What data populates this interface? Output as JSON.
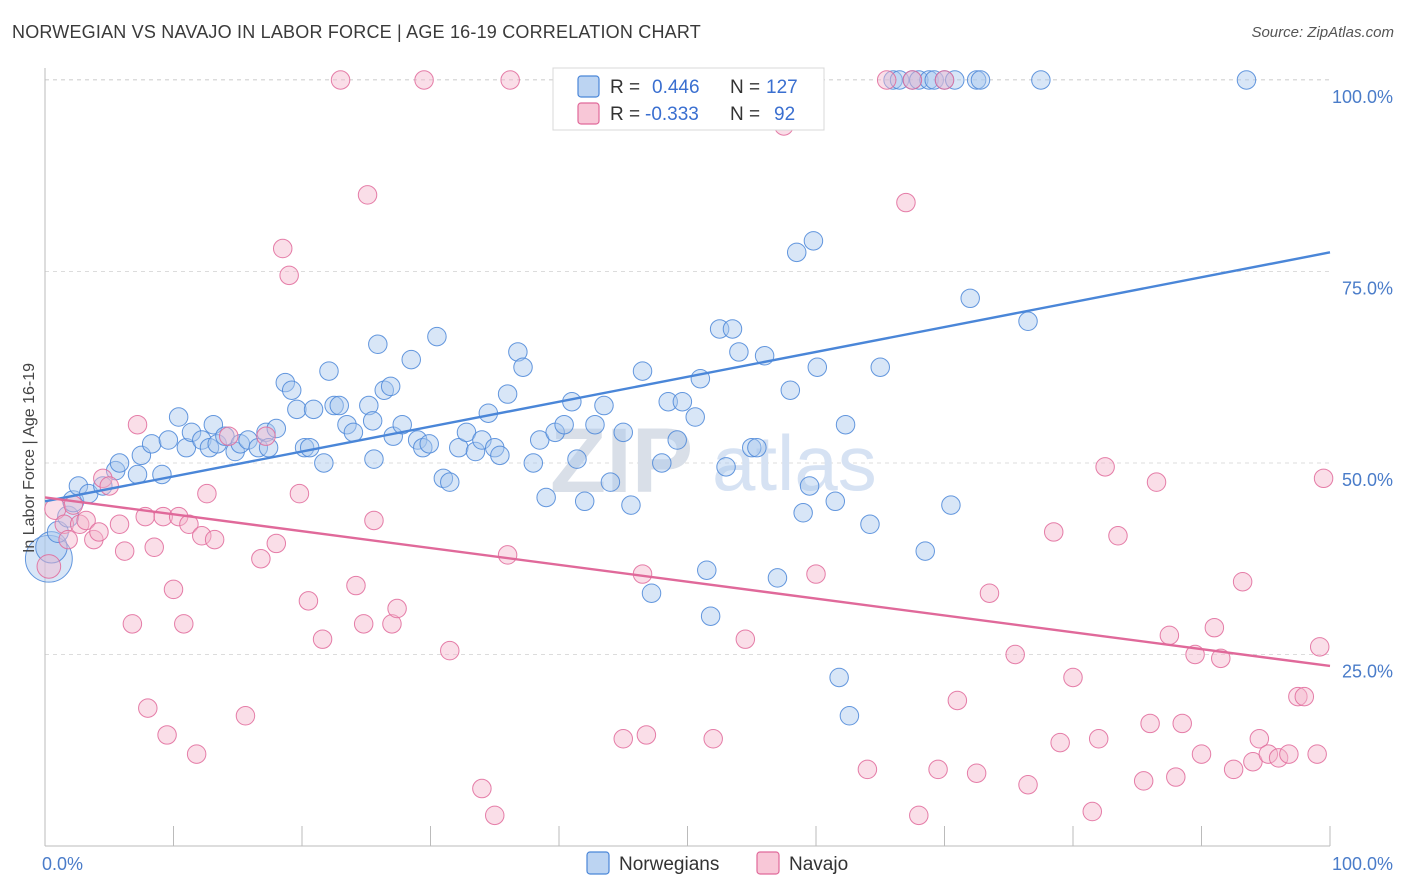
{
  "title": "NORWEGIAN VS NAVAJO IN LABOR FORCE | AGE 16-19 CORRELATION CHART",
  "source": "Source: ZipAtlas.com",
  "watermark": {
    "zip": "ZIP",
    "atlas": "atlas"
  },
  "chart_data": {
    "type": "scatter",
    "ylabel": "In Labor Force | Age 16-19",
    "xlim": [
      0,
      100
    ],
    "ylim": [
      0,
      100
    ],
    "x_tick_labels": [
      "0.0%",
      "100.0%"
    ],
    "y_ticks": [
      25,
      50,
      75,
      100
    ],
    "y_tick_labels": [
      "25.0%",
      "50.0%",
      "75.0%",
      "100.0%"
    ],
    "grid": true,
    "legend": {
      "placement": "top-center",
      "entries": [
        {
          "series": "Norwegians",
          "r_label": "R =",
          "r_value": "0.446",
          "n_label": "N =",
          "n_value": "127"
        },
        {
          "series": "Navajo",
          "r_label": "R =",
          "r_value": "-0.333",
          "n_label": "N =",
          "n_value": "92"
        }
      ]
    },
    "series": [
      {
        "name": "Norwegians",
        "color": "#4a86d8",
        "fill": "#a9c8ee",
        "trend": {
          "x": [
            0,
            100
          ],
          "y": [
            45.0,
            77.5
          ]
        },
        "points": [
          [
            0.3,
            37.5,
            34
          ],
          [
            0.5,
            39,
            22
          ],
          [
            1.0,
            41,
            14
          ],
          [
            1.8,
            43,
            14
          ],
          [
            2.2,
            45,
            14
          ],
          [
            2.6,
            47,
            12
          ],
          [
            3.4,
            46,
            12
          ],
          [
            4.5,
            47,
            12
          ],
          [
            5.5,
            49,
            12
          ],
          [
            5.8,
            50,
            12
          ],
          [
            7.2,
            48.5,
            12
          ],
          [
            7.5,
            51,
            12
          ],
          [
            8.3,
            52.5,
            12
          ],
          [
            9.1,
            48.5,
            12
          ],
          [
            9.6,
            53,
            12
          ],
          [
            10.4,
            56,
            12
          ],
          [
            11.0,
            52,
            12
          ],
          [
            11.4,
            54,
            12
          ],
          [
            12.2,
            53,
            12
          ],
          [
            12.8,
            52,
            12
          ],
          [
            13.1,
            55,
            12
          ],
          [
            13.4,
            52.5,
            12
          ],
          [
            14.0,
            53.5,
            12
          ],
          [
            14.8,
            51.5,
            12
          ],
          [
            15.2,
            52.5,
            12
          ],
          [
            15.8,
            53,
            12
          ],
          [
            16.6,
            52,
            12
          ],
          [
            17.2,
            54,
            12
          ],
          [
            17.4,
            52,
            12
          ],
          [
            18.0,
            54.5,
            12
          ],
          [
            18.7,
            60.5,
            12
          ],
          [
            19.2,
            59.5,
            12
          ],
          [
            19.6,
            57,
            12
          ],
          [
            20.2,
            52,
            12
          ],
          [
            20.6,
            52,
            12
          ],
          [
            20.9,
            57,
            12
          ],
          [
            21.7,
            50,
            12
          ],
          [
            22.1,
            62,
            12
          ],
          [
            22.5,
            57.5,
            12
          ],
          [
            22.9,
            57.5,
            12
          ],
          [
            23.5,
            55,
            12
          ],
          [
            24.0,
            54,
            12
          ],
          [
            25.2,
            57.5,
            12
          ],
          [
            25.5,
            55.5,
            12
          ],
          [
            25.6,
            50.5,
            12
          ],
          [
            25.9,
            65.5,
            12
          ],
          [
            26.4,
            59.5,
            12
          ],
          [
            26.9,
            60,
            12
          ],
          [
            27.1,
            53.5,
            12
          ],
          [
            27.8,
            55,
            12
          ],
          [
            28.5,
            63.5,
            12
          ],
          [
            29.0,
            53,
            12
          ],
          [
            29.4,
            52,
            12
          ],
          [
            29.9,
            52.5,
            12
          ],
          [
            30.5,
            66.5,
            12
          ],
          [
            31.0,
            48,
            12
          ],
          [
            31.5,
            47.5,
            12
          ],
          [
            32.2,
            52,
            12
          ],
          [
            32.8,
            54,
            12
          ],
          [
            33.5,
            51.5,
            12
          ],
          [
            34.0,
            53,
            12
          ],
          [
            34.5,
            56.5,
            12
          ],
          [
            35.0,
            52,
            12
          ],
          [
            35.4,
            51,
            12
          ],
          [
            36.0,
            59,
            12
          ],
          [
            36.8,
            64.5,
            12
          ],
          [
            37.2,
            62.5,
            12
          ],
          [
            38.0,
            50,
            12
          ],
          [
            38.5,
            53,
            12
          ],
          [
            39.0,
            45.5,
            12
          ],
          [
            39.7,
            54,
            12
          ],
          [
            40.4,
            55,
            12
          ],
          [
            41.0,
            58,
            12
          ],
          [
            41.4,
            50.5,
            12
          ],
          [
            42.0,
            45,
            12
          ],
          [
            42.8,
            55,
            12
          ],
          [
            43.5,
            57.5,
            12
          ],
          [
            44.0,
            47.5,
            12
          ],
          [
            45.0,
            54,
            12
          ],
          [
            45.6,
            44.5,
            12
          ],
          [
            46.5,
            62,
            12
          ],
          [
            47.2,
            33,
            12
          ],
          [
            48.0,
            50,
            12
          ],
          [
            48.5,
            58,
            12
          ],
          [
            49.2,
            53,
            12
          ],
          [
            49.6,
            58,
            12
          ],
          [
            50.6,
            56,
            12
          ],
          [
            51.0,
            61,
            12
          ],
          [
            51.5,
            36,
            12
          ],
          [
            51.8,
            30,
            12
          ],
          [
            52.5,
            67.5,
            12
          ],
          [
            53.0,
            49.5,
            12
          ],
          [
            53.5,
            67.5,
            12
          ],
          [
            54.0,
            64.5,
            12
          ],
          [
            55.0,
            52,
            12
          ],
          [
            55.4,
            52,
            12
          ],
          [
            56.0,
            64,
            12
          ],
          [
            57.0,
            35,
            12
          ],
          [
            58.0,
            59.5,
            12
          ],
          [
            58.5,
            77.5,
            12
          ],
          [
            59.0,
            43.5,
            12
          ],
          [
            59.5,
            47,
            12
          ],
          [
            59.8,
            79,
            12
          ],
          [
            60.1,
            62.5,
            12
          ],
          [
            61.5,
            45,
            12
          ],
          [
            61.8,
            22,
            12
          ],
          [
            62.3,
            55,
            12
          ],
          [
            62.6,
            17,
            12
          ],
          [
            64.2,
            42,
            12
          ],
          [
            65.0,
            62.5,
            12
          ],
          [
            66.0,
            100,
            12
          ],
          [
            66.5,
            100,
            12
          ],
          [
            67.5,
            100,
            12
          ],
          [
            68.0,
            100,
            12
          ],
          [
            68.5,
            38.5,
            12
          ],
          [
            68.8,
            100,
            12
          ],
          [
            69.2,
            100,
            12
          ],
          [
            70.0,
            100,
            12
          ],
          [
            70.5,
            44.5,
            12
          ],
          [
            70.8,
            100,
            12
          ],
          [
            72.0,
            71.5,
            12
          ],
          [
            72.5,
            100,
            12
          ],
          [
            72.8,
            100,
            12
          ],
          [
            76.5,
            68.5,
            12
          ],
          [
            77.5,
            100,
            12
          ],
          [
            93.5,
            100,
            12
          ]
        ]
      },
      {
        "name": "Navajo",
        "color": "#e0699a",
        "fill": "#f4b6cc",
        "trend": {
          "x": [
            0,
            100
          ],
          "y": [
            45.5,
            23.5
          ]
        },
        "points": [
          [
            0.3,
            36.5,
            16
          ],
          [
            0.8,
            44,
            14
          ],
          [
            1.5,
            42,
            12
          ],
          [
            1.8,
            40,
            12
          ],
          [
            2.2,
            44.5,
            12
          ],
          [
            2.7,
            42,
            12
          ],
          [
            3.2,
            42.5,
            12
          ],
          [
            3.8,
            40,
            12
          ],
          [
            4.2,
            41,
            12
          ],
          [
            4.5,
            48,
            12
          ],
          [
            5.0,
            47,
            12
          ],
          [
            5.8,
            42,
            12
          ],
          [
            6.2,
            38.5,
            12
          ],
          [
            6.8,
            29,
            12
          ],
          [
            7.2,
            55,
            12
          ],
          [
            7.8,
            43,
            12
          ],
          [
            8.0,
            18,
            12
          ],
          [
            8.5,
            39,
            12
          ],
          [
            9.2,
            43,
            12
          ],
          [
            9.5,
            14.5,
            12
          ],
          [
            10.0,
            33.5,
            12
          ],
          [
            10.4,
            43,
            12
          ],
          [
            10.8,
            29,
            12
          ],
          [
            11.2,
            42,
            12
          ],
          [
            11.8,
            12,
            12
          ],
          [
            12.2,
            40.5,
            12
          ],
          [
            12.6,
            46,
            12
          ],
          [
            13.2,
            40,
            12
          ],
          [
            14.3,
            53.5,
            12
          ],
          [
            15.6,
            17,
            12
          ],
          [
            16.8,
            37.5,
            12
          ],
          [
            17.2,
            53.5,
            12
          ],
          [
            18.0,
            39.5,
            12
          ],
          [
            18.5,
            78,
            12
          ],
          [
            19.0,
            74.5,
            12
          ],
          [
            19.8,
            46,
            12
          ],
          [
            20.5,
            32,
            12
          ],
          [
            21.6,
            27,
            12
          ],
          [
            23.0,
            100,
            12
          ],
          [
            24.2,
            34,
            12
          ],
          [
            24.8,
            29,
            12
          ],
          [
            25.1,
            85,
            12
          ],
          [
            25.6,
            42.5,
            12
          ],
          [
            27.0,
            29,
            12
          ],
          [
            27.4,
            31,
            12
          ],
          [
            29.5,
            100,
            12
          ],
          [
            31.5,
            25.5,
            12
          ],
          [
            34.0,
            7.5,
            12
          ],
          [
            36.2,
            100,
            12
          ],
          [
            35.0,
            4,
            12
          ],
          [
            36.0,
            38,
            12
          ],
          [
            45.0,
            14,
            12
          ],
          [
            46.5,
            35.5,
            12
          ],
          [
            46.8,
            14.5,
            12
          ],
          [
            52.0,
            14,
            12
          ],
          [
            54.5,
            27,
            12
          ],
          [
            57.5,
            94,
            12
          ],
          [
            60.0,
            35.5,
            12
          ],
          [
            64.0,
            10,
            12
          ],
          [
            65.5,
            100,
            12
          ],
          [
            67.0,
            84,
            12
          ],
          [
            67.5,
            100,
            12
          ],
          [
            68.0,
            4,
            12
          ],
          [
            69.5,
            10,
            12
          ],
          [
            70.0,
            100,
            12
          ],
          [
            71.0,
            19,
            12
          ],
          [
            72.5,
            9.5,
            12
          ],
          [
            73.5,
            33,
            12
          ],
          [
            75.5,
            25,
            12
          ],
          [
            76.5,
            8,
            12
          ],
          [
            78.5,
            41,
            12
          ],
          [
            79.0,
            13.5,
            12
          ],
          [
            80.0,
            22,
            12
          ],
          [
            81.5,
            4.5,
            12
          ],
          [
            82.0,
            14,
            12
          ],
          [
            82.5,
            49.5,
            12
          ],
          [
            83.5,
            40.5,
            12
          ],
          [
            85.5,
            8.5,
            12
          ],
          [
            86.0,
            16,
            12
          ],
          [
            86.5,
            47.5,
            12
          ],
          [
            87.5,
            27.5,
            12
          ],
          [
            88.0,
            9,
            12
          ],
          [
            88.5,
            16,
            12
          ],
          [
            89.5,
            25,
            12
          ],
          [
            90.0,
            12,
            12
          ],
          [
            91.0,
            28.5,
            12
          ],
          [
            91.5,
            24.5,
            12
          ],
          [
            92.5,
            10,
            12
          ],
          [
            93.2,
            34.5,
            12
          ],
          [
            94.0,
            11,
            12
          ],
          [
            94.5,
            14,
            12
          ],
          [
            95.2,
            12,
            12
          ],
          [
            96.0,
            11.5,
            12
          ],
          [
            96.8,
            12,
            12
          ],
          [
            97.5,
            19.5,
            12
          ],
          [
            98.0,
            19.5,
            12
          ],
          [
            99.0,
            12,
            12
          ],
          [
            99.5,
            48,
            12
          ],
          [
            99.2,
            26,
            12
          ]
        ]
      }
    ]
  }
}
